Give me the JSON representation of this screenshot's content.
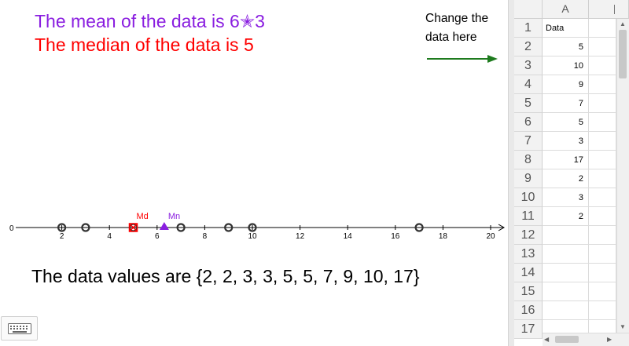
{
  "graphics": {
    "mean_text": "The mean of the data is 6✭3",
    "median_text": "The median of the data is  5",
    "change_text_line1": "Change the",
    "change_text_line2": "data here",
    "values_text": "The data values are {2, 2, 3, 3, 5, 5, 7, 9, 10, 17}",
    "median_label": "Md",
    "mean_label": "Mn",
    "axis": {
      "min": 0,
      "max": 20,
      "ticks": [
        2,
        4,
        6,
        8,
        10,
        12,
        14,
        16,
        18,
        20
      ],
      "origin_label": "0",
      "data_points": [
        2,
        3,
        5,
        7,
        9,
        10,
        17
      ],
      "median": 5,
      "mean": 6.3
    },
    "colors": {
      "mean": "#8a1ee0",
      "median": "#ff0000",
      "arrow": "#1e7b1e"
    }
  },
  "spreadsheet": {
    "columns": [
      "A",
      "B"
    ],
    "rows": [
      "1",
      "2",
      "3",
      "4",
      "5",
      "6",
      "7",
      "8",
      "9",
      "10",
      "11",
      "12",
      "13",
      "14",
      "15",
      "16",
      "17"
    ],
    "header_cell": "Data",
    "values": [
      "5",
      "10",
      "9",
      "7",
      "5",
      "3",
      "17",
      "2",
      "3",
      "2"
    ]
  },
  "icons": {
    "keyboard": "keyboard-icon"
  }
}
